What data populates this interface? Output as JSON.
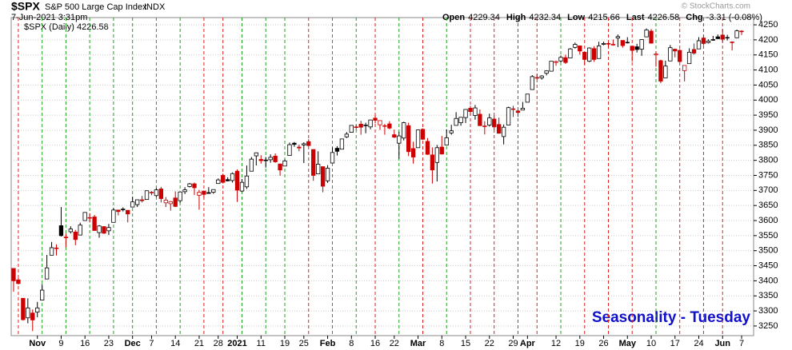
{
  "chart_data": {
    "type": "candlestick",
    "symbol": "$SPX",
    "title": "S&P 500 Large Cap Index",
    "exchange": "INDX",
    "timestamp": "7-Jun-2021 3:31pm",
    "credit": "© StockCharts.com",
    "stats": [
      [
        "Open",
        "4229.34"
      ],
      [
        "High",
        "4232.34"
      ],
      [
        "Low",
        "4215.66"
      ],
      [
        "Last",
        "4226.58"
      ],
      [
        "Chg",
        "-3.31 (-0.08%)"
      ]
    ],
    "legend": "$SPX (Daily) 4226.58",
    "annotation": "Seasonality - Tuesday",
    "up_color": "#000000",
    "down_color": "#cc0000",
    "highlight_up_color": "#22a022",
    "highlight_down_color": "#dd2222",
    "grid": true,
    "ylim": [
      3218,
      4274
    ],
    "yticks": [
      3250,
      3300,
      3350,
      3400,
      3450,
      3500,
      3550,
      3600,
      3650,
      3700,
      3750,
      3800,
      3850,
      3900,
      3950,
      4000,
      4050,
      4100,
      4150,
      4200,
      4250
    ],
    "month_labels": [
      "Nov",
      "Dec",
      "2021",
      "Feb",
      "Mar",
      "Apr",
      "May",
      "Jun"
    ],
    "categories": [
      null,
      null,
      null,
      null,
      null,
      "Nov",
      null,
      null,
      null,
      null,
      "9",
      null,
      null,
      null,
      null,
      "16",
      null,
      null,
      null,
      null,
      "23",
      null,
      null,
      null,
      null,
      "Dec",
      null,
      null,
      null,
      "7",
      null,
      null,
      null,
      null,
      "14",
      null,
      null,
      null,
      null,
      "21",
      null,
      null,
      null,
      "28",
      null,
      null,
      null,
      "2021",
      null,
      null,
      null,
      null,
      "11",
      null,
      null,
      null,
      null,
      "19",
      null,
      null,
      null,
      "25",
      null,
      null,
      null,
      null,
      "Feb",
      null,
      null,
      null,
      null,
      "8",
      null,
      null,
      null,
      null,
      "16",
      null,
      null,
      null,
      "22",
      null,
      null,
      null,
      null,
      "Mar",
      null,
      null,
      null,
      null,
      "8",
      null,
      null,
      null,
      null,
      "15",
      null,
      null,
      null,
      null,
      "22",
      null,
      null,
      null,
      null,
      "29",
      null,
      null,
      "Apr",
      null,
      null,
      null,
      null,
      null,
      "12",
      null,
      null,
      null,
      null,
      "19",
      null,
      null,
      null,
      null,
      "26",
      null,
      null,
      null,
      null,
      "May",
      null,
      null,
      null,
      null,
      "10",
      null,
      null,
      null,
      null,
      "17",
      null,
      null,
      null,
      null,
      "24",
      null,
      null,
      null,
      null,
      "Jun",
      null,
      null,
      null,
      "7"
    ],
    "highlight_days": [
      1,
      6,
      11,
      16,
      21,
      25,
      30,
      35,
      40,
      44,
      48,
      53,
      57,
      62,
      67,
      72,
      76,
      81,
      86,
      91,
      96,
      101,
      106,
      110,
      115,
      120,
      125,
      130,
      135,
      140,
      145,
      149
    ],
    "ohlc": [
      [
        3441,
        3441,
        3364,
        3400
      ],
      [
        3403,
        3409,
        3388,
        3391
      ],
      [
        3342,
        3342,
        3268,
        3271
      ],
      [
        3277,
        3342,
        3259,
        3310
      ],
      [
        3293,
        3305,
        3233,
        3270
      ],
      [
        3296,
        3330,
        3279,
        3310
      ],
      [
        3336,
        3389,
        3336,
        3369
      ],
      [
        3406,
        3486,
        3405,
        3443
      ],
      [
        3485,
        3529,
        3485,
        3510
      ],
      [
        3508,
        3521,
        3484,
        3509
      ],
      [
        3583,
        3645,
        3547,
        3550
      ],
      [
        3543,
        3557,
        3511,
        3545
      ],
      [
        3563,
        3581,
        3557,
        3572
      ],
      [
        3562,
        3569,
        3518,
        3537
      ],
      [
        3552,
        3593,
        3552,
        3585
      ],
      [
        3600,
        3628,
        3600,
        3627
      ],
      [
        3610,
        3624,
        3594,
        3610
      ],
      [
        3612,
        3619,
        3567,
        3567
      ],
      [
        3560,
        3585,
        3543,
        3582
      ],
      [
        3580,
        3581,
        3556,
        3558
      ],
      [
        3566,
        3589,
        3552,
        3577
      ],
      [
        3594,
        3642,
        3594,
        3635
      ],
      [
        3635,
        3635,
        3617,
        3630
      ],
      [
        3638,
        3644,
        3630,
        3638
      ],
      [
        3634,
        3634,
        3594,
        3622
      ],
      [
        3645,
        3679,
        3645,
        3662
      ],
      [
        3653,
        3670,
        3645,
        3669
      ],
      [
        3669,
        3682,
        3660,
        3666
      ],
      [
        3670,
        3699,
        3670,
        3699
      ],
      [
        3694,
        3698,
        3684,
        3692
      ],
      [
        3683,
        3708,
        3678,
        3702
      ],
      [
        3705,
        3712,
        3660,
        3673
      ],
      [
        3659,
        3678,
        3645,
        3668
      ],
      [
        3656,
        3665,
        3633,
        3663
      ],
      [
        3675,
        3697,
        3645,
        3647
      ],
      [
        3666,
        3695,
        3659,
        3695
      ],
      [
        3696,
        3711,
        3688,
        3702
      ],
      [
        3713,
        3725,
        3710,
        3722
      ],
      [
        3722,
        3726,
        3685,
        3709
      ],
      [
        3684,
        3702,
        3636,
        3694
      ],
      [
        3698,
        3698,
        3676,
        3687
      ],
      [
        3693,
        3711,
        3689,
        3690
      ],
      [
        3694,
        3703,
        3689,
        3703
      ],
      [
        3723,
        3740,
        3723,
        3735
      ],
      [
        3750,
        3756,
        3723,
        3727
      ],
      [
        3736,
        3744,
        3730,
        3732
      ],
      [
        3733,
        3760,
        3726,
        3756
      ],
      [
        3764,
        3770,
        3662,
        3701
      ],
      [
        3698,
        3738,
        3695,
        3727
      ],
      [
        3712,
        3783,
        3705,
        3748
      ],
      [
        3764,
        3811,
        3764,
        3804
      ],
      [
        3815,
        3826,
        3783,
        3825
      ],
      [
        3803,
        3817,
        3789,
        3799
      ],
      [
        3801,
        3811,
        3776,
        3801
      ],
      [
        3802,
        3820,
        3792,
        3810
      ],
      [
        3814,
        3823,
        3792,
        3795
      ],
      [
        3788,
        3788,
        3749,
        3768
      ],
      [
        3781,
        3804,
        3781,
        3798
      ],
      [
        3816,
        3859,
        3816,
        3852
      ],
      [
        3857,
        3861,
        3845,
        3853
      ],
      [
        3844,
        3852,
        3830,
        3841
      ],
      [
        3851,
        3860,
        3791,
        3855
      ],
      [
        3862,
        3870,
        3847,
        3849
      ],
      [
        3836,
        3836,
        3732,
        3750
      ],
      [
        3755,
        3830,
        3755,
        3787
      ],
      [
        3779,
        3779,
        3694,
        3714
      ],
      [
        3732,
        3784,
        3725,
        3774
      ],
      [
        3791,
        3843,
        3791,
        3826
      ],
      [
        3840,
        3847,
        3816,
        3830
      ],
      [
        3837,
        3872,
        3837,
        3871
      ],
      [
        3878,
        3894,
        3874,
        3887
      ],
      [
        3893,
        3916,
        3892,
        3916
      ],
      [
        3910,
        3918,
        3902,
        3911
      ],
      [
        3920,
        3931,
        3885,
        3910
      ],
      [
        3917,
        3925,
        3890,
        3916
      ],
      [
        3911,
        3935,
        3903,
        3934
      ],
      [
        3940,
        3950,
        3923,
        3933
      ],
      [
        3918,
        3933,
        3901,
        3932
      ],
      [
        3915,
        3921,
        3885,
        3914
      ],
      [
        3921,
        3930,
        3903,
        3907
      ],
      [
        3885,
        3902,
        3874,
        3877
      ],
      [
        3857,
        3895,
        3805,
        3881
      ],
      [
        3874,
        3928,
        3866,
        3925
      ],
      [
        3915,
        3925,
        3814,
        3829
      ],
      [
        3839,
        3862,
        3789,
        3811
      ],
      [
        3842,
        3902,
        3842,
        3901
      ],
      [
        3903,
        3906,
        3868,
        3870
      ],
      [
        3863,
        3874,
        3818,
        3820
      ],
      [
        3818,
        3843,
        3723,
        3768
      ],
      [
        3793,
        3851,
        3730,
        3842
      ],
      [
        3844,
        3881,
        3819,
        3821
      ],
      [
        3851,
        3903,
        3851,
        3875
      ],
      [
        3891,
        3918,
        3885,
        3898
      ],
      [
        3916,
        3960,
        3916,
        3939
      ],
      [
        3925,
        3944,
        3915,
        3943
      ],
      [
        3942,
        3970,
        3924,
        3969
      ],
      [
        3973,
        3981,
        3949,
        3962
      ],
      [
        3949,
        3984,
        3935,
        3974
      ],
      [
        3953,
        3969,
        3915,
        3915
      ],
      [
        3914,
        3930,
        3886,
        3913
      ],
      [
        3917,
        3955,
        3912,
        3941
      ],
      [
        3937,
        3949,
        3902,
        3911
      ],
      [
        3919,
        3942,
        3889,
        3890
      ],
      [
        3879,
        3919,
        3853,
        3910
      ],
      [
        3917,
        3978,
        3917,
        3975
      ],
      [
        3969,
        3981,
        3944,
        3971
      ],
      [
        3964,
        3968,
        3944,
        3959
      ],
      [
        3967,
        3994,
        3967,
        3973
      ],
      [
        3993,
        4020,
        3993,
        4020
      ],
      [
        4035,
        4083,
        4035,
        4078
      ],
      [
        4075,
        4087,
        4069,
        4074
      ],
      [
        4074,
        4083,
        4068,
        4080
      ],
      [
        4089,
        4098,
        4082,
        4097
      ],
      [
        4096,
        4129,
        4096,
        4129
      ],
      [
        4125,
        4131,
        4114,
        4128
      ],
      [
        4130,
        4148,
        4125,
        4142
      ],
      [
        4141,
        4151,
        4120,
        4125
      ],
      [
        4140,
        4173,
        4140,
        4170
      ],
      [
        4175,
        4191,
        4171,
        4185
      ],
      [
        4180,
        4180,
        4151,
        4163
      ],
      [
        4159,
        4160,
        4118,
        4135
      ],
      [
        4129,
        4175,
        4126,
        4173
      ],
      [
        4171,
        4179,
        4127,
        4135
      ],
      [
        4138,
        4194,
        4138,
        4180
      ],
      [
        4185,
        4194,
        4182,
        4188
      ],
      [
        4188,
        4193,
        4176,
        4187
      ],
      [
        4185,
        4201,
        4181,
        4183
      ],
      [
        4206,
        4218,
        4176,
        4211
      ],
      [
        4198,
        4199,
        4174,
        4181
      ],
      [
        4192,
        4209,
        4188,
        4192
      ],
      [
        4179,
        4179,
        4128,
        4165
      ],
      [
        4177,
        4187,
        4158,
        4168
      ],
      [
        4169,
        4202,
        4147,
        4201
      ],
      [
        4210,
        4238,
        4210,
        4233
      ],
      [
        4229,
        4236,
        4188,
        4189
      ],
      [
        4150,
        4162,
        4111,
        4153
      ],
      [
        4131,
        4134,
        4056,
        4063
      ],
      [
        4074,
        4131,
        4074,
        4113
      ],
      [
        4130,
        4183,
        4130,
        4174
      ],
      [
        4169,
        4171,
        4142,
        4163
      ],
      [
        4165,
        4169,
        4125,
        4128
      ],
      [
        4098,
        4116,
        4062,
        4115
      ],
      [
        4121,
        4172,
        4121,
        4159
      ],
      [
        4168,
        4188,
        4151,
        4156
      ],
      [
        4170,
        4209,
        4170,
        4197
      ],
      [
        4206,
        4214,
        4182,
        4188
      ],
      [
        4191,
        4202,
        4188,
        4196
      ],
      [
        4201,
        4213,
        4197,
        4201
      ],
      [
        4210,
        4218,
        4203,
        4204
      ],
      [
        4216,
        4235,
        4192,
        4202
      ],
      [
        4207,
        4217,
        4198,
        4208
      ],
      [
        4191,
        4195,
        4165,
        4193
      ],
      [
        4207,
        4234,
        4206,
        4230
      ],
      [
        4229,
        4232,
        4216,
        4227
      ]
    ]
  }
}
